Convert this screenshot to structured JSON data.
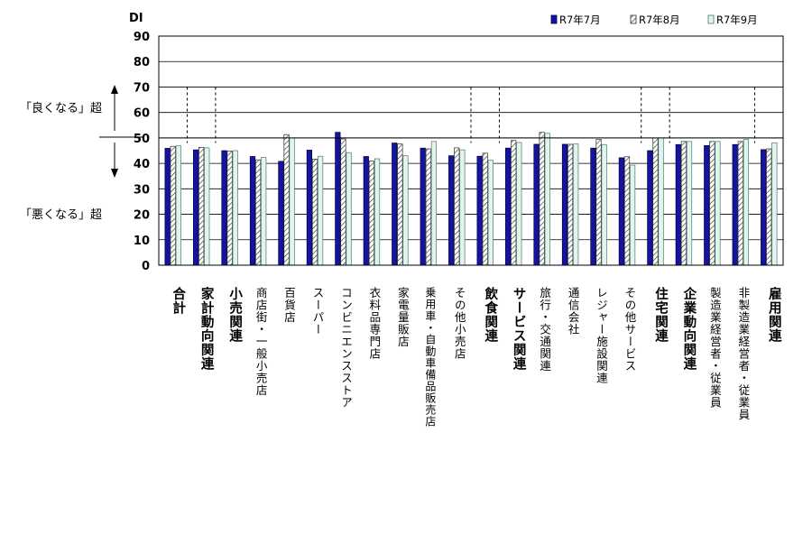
{
  "chart_data": {
    "type": "bar",
    "ylabel": "DI",
    "ylim": [
      0,
      90
    ],
    "yticks": [
      0,
      10,
      20,
      30,
      40,
      50,
      60,
      70,
      80,
      90
    ],
    "categories": [
      "合計",
      "家計動向関連",
      "小売関連",
      "商店街・一般小売店",
      "百貨店",
      "スーパー",
      "コンビニエンスストア",
      "衣料品専門店",
      "家電量販店",
      "乗用車・自動車備品販売店",
      "その他小売店",
      "飲食関連",
      "サービス関連",
      "旅行・交通関連",
      "通信会社",
      "レジャー施設関連",
      "その他サービス",
      "住宅関連",
      "企業動向関連",
      "製造業経営者・従業員",
      "非製造業経営者・従業員",
      "雇用関連"
    ],
    "bold_categories": [
      "合計",
      "家計動向関連",
      "小売関連",
      "飲食関連",
      "サービス関連",
      "住宅関連",
      "企業動向関連",
      "雇用関連"
    ],
    "series": [
      {
        "name": "R7年7月",
        "values": [
          45.9,
          45.3,
          45.0,
          42.7,
          40.8,
          45.2,
          52.2,
          42.7,
          48.0,
          46.0,
          43.0,
          42.8,
          46.0,
          47.5,
          47.5,
          46.0,
          42.2,
          45.0,
          47.4,
          47.0,
          47.4,
          45.4
        ]
      },
      {
        "name": "R7年8月",
        "values": [
          46.7,
          46.3,
          44.8,
          41.4,
          51.3,
          41.7,
          49.6,
          40.9,
          47.6,
          45.7,
          46.1,
          44.0,
          49.0,
          52.2,
          47.5,
          49.4,
          42.6,
          50.0,
          48.6,
          48.6,
          48.6,
          45.7
        ]
      },
      {
        "name": "R7年9月",
        "values": [
          46.9,
          46.1,
          45.0,
          42.3,
          50.0,
          42.8,
          44.2,
          41.8,
          43.0,
          48.6,
          45.3,
          41.2,
          48.2,
          51.8,
          47.6,
          47.4,
          39.3,
          50.0,
          48.6,
          48.6,
          49.4,
          48.1
        ]
      }
    ],
    "series_colors": [
      "#1414a0",
      "#ffffff",
      "#e3f3ee"
    ],
    "reference_line": 50,
    "group_dividers_after": [
      "合計",
      "家計動向関連",
      "その他小売店",
      "飲食関連",
      "その他サービス",
      "住宅関連",
      "非製造業経営者・従業員"
    ],
    "annotations": {
      "above": "「良くなる」超",
      "below": "「悪くなる」超"
    },
    "grid": true,
    "legend_position": "top-right"
  }
}
